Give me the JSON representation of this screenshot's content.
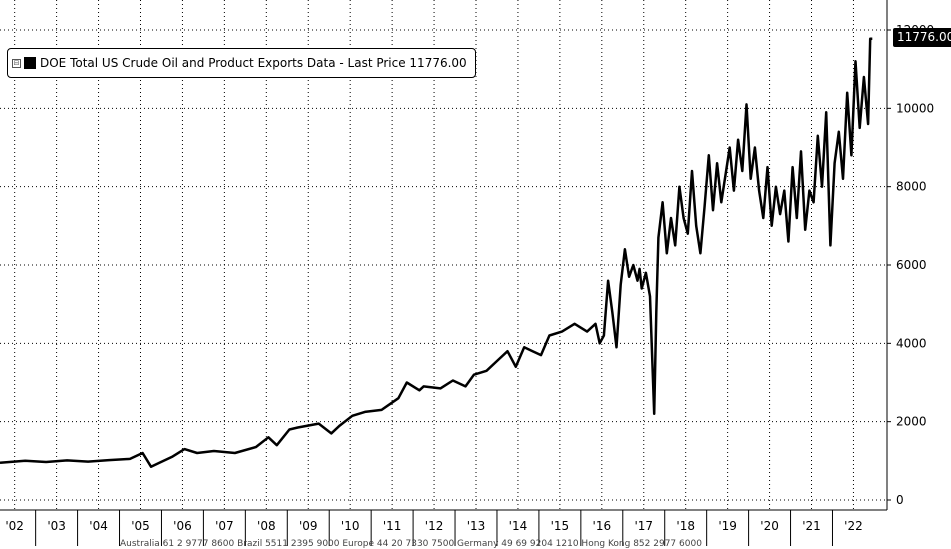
{
  "legend": {
    "toggle": "⊟",
    "label": "DOE Total US Crude Oil and Product Exports Data - Last Price 11776.00"
  },
  "last_price_tag": "11776.00",
  "footer": "Australia 61 2 9777 8600 Brazil 5511 2395 9000 Europe 44 20 7330 7500 Germany 49 69 9204 1210 Hong Kong 852 2977 6000",
  "colors": {
    "series": "#000000",
    "grid": "#000000",
    "background": "#ffffff"
  },
  "chart_data": {
    "type": "line",
    "title": "",
    "xlabel": "",
    "ylabel": "",
    "grid": true,
    "legend_position": "top-left",
    "xlim": [
      2001.9,
      2023.05
    ],
    "ylim": [
      0,
      12000
    ],
    "y_ticks": [
      0,
      2000,
      4000,
      6000,
      8000,
      10000,
      12000
    ],
    "x_ticks": [
      {
        "label": "'02",
        "value": 2002.25
      },
      {
        "label": "'03",
        "value": 2003.25
      },
      {
        "label": "'04",
        "value": 2004.25
      },
      {
        "label": "'05",
        "value": 2005.25
      },
      {
        "label": "'06",
        "value": 2006.25
      },
      {
        "label": "'07",
        "value": 2007.25
      },
      {
        "label": "'08",
        "value": 2008.25
      },
      {
        "label": "'09",
        "value": 2009.25
      },
      {
        "label": "'10",
        "value": 2010.25
      },
      {
        "label": "'11",
        "value": 2011.25
      },
      {
        "label": "'12",
        "value": 2012.25
      },
      {
        "label": "'13",
        "value": 2013.25
      },
      {
        "label": "'14",
        "value": 2014.25
      },
      {
        "label": "'15",
        "value": 2015.25
      },
      {
        "label": "'16",
        "value": 2016.25
      },
      {
        "label": "'17",
        "value": 2017.25
      },
      {
        "label": "'18",
        "value": 2018.25
      },
      {
        "label": "'19",
        "value": 2019.25
      },
      {
        "label": "'20",
        "value": 2020.25
      },
      {
        "label": "'21",
        "value": 2021.25
      },
      {
        "label": "'22",
        "value": 2022.25
      }
    ],
    "series": [
      {
        "last_price": 11776,
        "x": [
          2001.9,
          2002.5,
          2003.0,
          2003.5,
          2004.0,
          2004.5,
          2005.0,
          2005.3,
          2005.5,
          2005.7,
          2006.0,
          2006.3,
          2006.6,
          2007.0,
          2007.5,
          2008.0,
          2008.3,
          2008.5,
          2008.8,
          2009.0,
          2009.5,
          2009.8,
          2010.0,
          2010.3,
          2010.6,
          2011.0,
          2011.4,
          2011.6,
          2011.9,
          2012.0,
          2012.4,
          2012.7,
          2013.0,
          2013.2,
          2013.5,
          2013.8,
          2014.0,
          2014.2,
          2014.4,
          2014.6,
          2014.8,
          2015.0,
          2015.3,
          2015.6,
          2015.9,
          2016.1,
          2016.2,
          2016.3,
          2016.4,
          2016.5,
          2016.6,
          2016.7,
          2016.8,
          2016.9,
          2017.0,
          2017.1,
          2017.15,
          2017.2,
          2017.3,
          2017.4,
          2017.5,
          2017.55,
          2017.6,
          2017.7,
          2017.8,
          2017.9,
          2018.0,
          2018.1,
          2018.2,
          2018.3,
          2018.4,
          2018.5,
          2018.6,
          2018.7,
          2018.8,
          2018.9,
          2019.0,
          2019.1,
          2019.2,
          2019.3,
          2019.4,
          2019.5,
          2019.6,
          2019.7,
          2019.8,
          2019.9,
          2020.0,
          2020.1,
          2020.2,
          2020.3,
          2020.4,
          2020.5,
          2020.6,
          2020.7,
          2020.8,
          2020.9,
          2021.0,
          2021.1,
          2021.2,
          2021.3,
          2021.4,
          2021.5,
          2021.6,
          2021.7,
          2021.8,
          2021.9,
          2022.0,
          2022.1,
          2022.2,
          2022.3,
          2022.4,
          2022.5,
          2022.6,
          2022.65,
          2022.7
        ],
        "values": [
          950,
          1000,
          970,
          1010,
          980,
          1020,
          1050,
          1200,
          850,
          950,
          1100,
          1300,
          1200,
          1250,
          1200,
          1350,
          1600,
          1400,
          1800,
          1850,
          1950,
          1700,
          1900,
          2150,
          2250,
          2300,
          2600,
          3000,
          2800,
          2900,
          2850,
          3050,
          2900,
          3200,
          3300,
          3600,
          3800,
          3400,
          3900,
          3800,
          3700,
          4200,
          4300,
          4500,
          4300,
          4500,
          4000,
          4200,
          5600,
          4800,
          3900,
          5500,
          6400,
          5700,
          6000,
          5600,
          5900,
          5400,
          5800,
          5200,
          2200,
          4800,
          6700,
          7600,
          6300,
          7200,
          6500,
          8000,
          7200,
          6800,
          8400,
          7000,
          6300,
          7500,
          8800,
          7400,
          8600,
          7600,
          8300,
          9000,
          7900,
          9200,
          8400,
          10100,
          8200,
          9000,
          7900,
          7200,
          8500,
          7000,
          8000,
          7300,
          7900,
          6600,
          8500,
          7200,
          8900,
          6900,
          7900,
          7600,
          9300,
          8000,
          9900,
          6500,
          8600,
          9400,
          8200,
          10400,
          8800,
          11200,
          9500,
          10800,
          9600,
          11776,
          11776
        ]
      }
    ]
  }
}
